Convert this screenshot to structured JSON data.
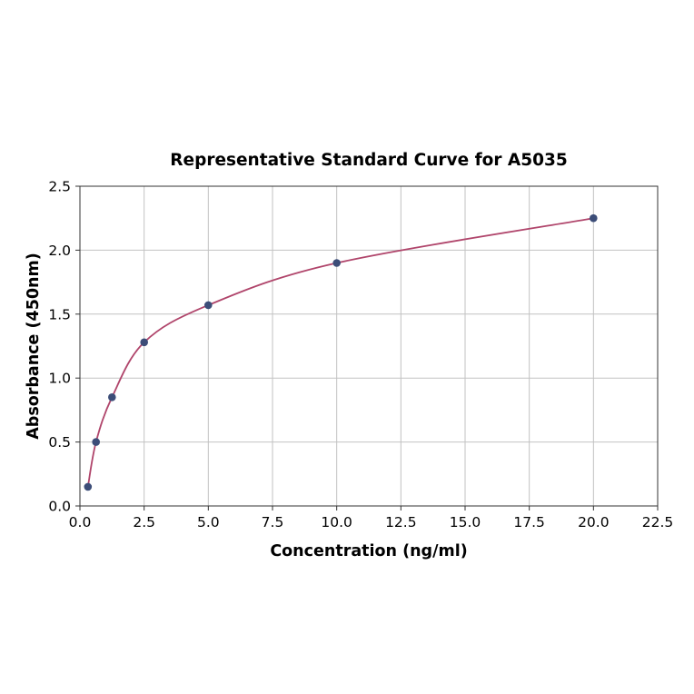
{
  "figure": {
    "background": "#ffffff"
  },
  "chart_data": {
    "type": "scatter",
    "title": "Representative Standard Curve for A5035",
    "xlabel": "Concentration (ng/ml)",
    "ylabel": "Absorbance (450nm)",
    "x": [
      0.313,
      0.625,
      1.25,
      2.5,
      5,
      10,
      20
    ],
    "y": [
      0.15,
      0.5,
      0.85,
      1.28,
      1.57,
      1.9,
      2.25
    ],
    "xlim": [
      0,
      22.5
    ],
    "ylim": [
      0,
      2.5
    ],
    "xticks": [
      0,
      2.5,
      5,
      7.5,
      10,
      12.5,
      15,
      17.5,
      20,
      22.5
    ],
    "yticks": [
      0,
      0.5,
      1,
      1.5,
      2,
      2.5
    ],
    "xtick_labels": [
      "0.0",
      "2.5",
      "5.0",
      "7.5",
      "10.0",
      "12.5",
      "15.0",
      "17.5",
      "20.0",
      "22.5"
    ],
    "ytick_labels": [
      "0.0",
      "0.5",
      "1.0",
      "1.5",
      "2.0",
      "2.5"
    ],
    "grid": true,
    "legend": "none",
    "curve_style": "smooth-fit-through-points",
    "line_color": "#b0456b",
    "point_color": "#3c4d78",
    "grid_color": "#c2c2c2",
    "axis_color": "#333333"
  }
}
